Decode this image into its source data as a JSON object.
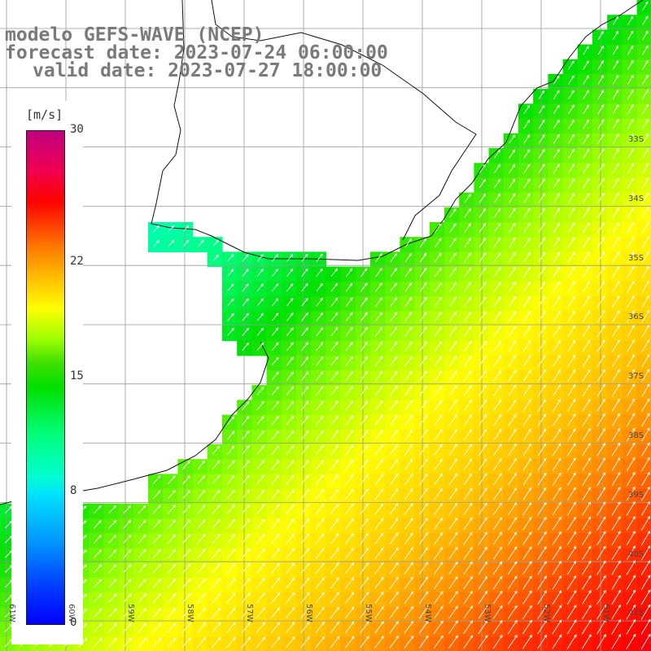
{
  "title": {
    "line1": "modelo GEFS-WAVE (NCEP)",
    "line2": "forecast date: 2023-07-24 06:00:00",
    "line3": "valid date: 2023-07-27 18:00:00"
  },
  "colorbar": {
    "unit": "[m/s]",
    "ticks": [
      {
        "label": "30",
        "value": 30
      },
      {
        "label": "22",
        "value": 22
      },
      {
        "label": "15",
        "value": 15
      },
      {
        "label": "8",
        "value": 8
      },
      {
        "label": "0",
        "value": 0
      }
    ],
    "min": 0,
    "max": 30
  },
  "map": {
    "lon_range": [
      -61,
      -50
    ],
    "lat_range": [
      -41.3,
      -30.7
    ],
    "lat_labels": [
      "33S",
      "34S",
      "35S",
      "36S",
      "37S",
      "38S",
      "39S",
      "40S",
      "41S"
    ],
    "lon_labels": [
      "61W",
      "60W",
      "59W",
      "58W",
      "57W",
      "56W",
      "55W",
      "54W",
      "53W",
      "52W",
      "51W"
    ],
    "field": "wind speed"
  }
}
